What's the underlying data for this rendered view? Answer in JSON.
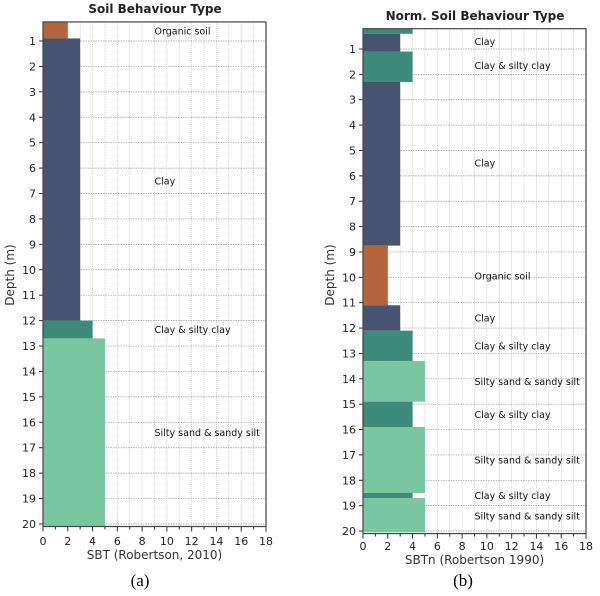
{
  "chart_data": [
    {
      "type": "bar",
      "orientation": "horizontal-depth-profile",
      "title": "Soil Behaviour Type",
      "xlabel": "SBT (Robertson, 2010)",
      "ylabel": "Depth (m)",
      "panel_label": "(a)",
      "xlim": [
        0,
        18
      ],
      "ylim": [
        0.25,
        20.1
      ],
      "x_ticks": [
        "0",
        "2",
        "4",
        "6",
        "8",
        "10",
        "12",
        "14",
        "16",
        "18"
      ],
      "y_ticks": [
        "1",
        "2",
        "3",
        "4",
        "5",
        "6",
        "7",
        "8",
        "9",
        "10",
        "11",
        "12",
        "13",
        "14",
        "15",
        "16",
        "17",
        "18",
        "19",
        "20"
      ],
      "grid": true,
      "layers": [
        {
          "top": 0.25,
          "bottom": 0.9,
          "value": 2,
          "type": "organic"
        },
        {
          "top": 0.9,
          "bottom": 12.0,
          "value": 3,
          "type": "clay"
        },
        {
          "top": 12.0,
          "bottom": 12.7,
          "value": 4,
          "type": "clay-silty-clay"
        },
        {
          "top": 12.7,
          "bottom": 20.1,
          "value": 5,
          "type": "silty-sand"
        }
      ],
      "annotations": [
        {
          "text": "Organic soil",
          "depth": 0.6
        },
        {
          "text": "Clay",
          "depth": 6.5
        },
        {
          "text": "Clay & silty clay",
          "depth": 12.35
        },
        {
          "text": "Silty sand & sandy silt",
          "depth": 16.4
        }
      ]
    },
    {
      "type": "bar",
      "orientation": "horizontal-depth-profile",
      "title": "Norm. Soil Behaviour Type",
      "xlabel": "SBTn (Robertson 1990)",
      "ylabel": "Depth (m)",
      "panel_label": "(b)",
      "xlim": [
        0,
        18
      ],
      "ylim": [
        0.2,
        20.1
      ],
      "x_ticks": [
        "0",
        "2",
        "4",
        "6",
        "8",
        "10",
        "12",
        "14",
        "16",
        "18"
      ],
      "y_ticks": [
        "1",
        "2",
        "3",
        "4",
        "5",
        "6",
        "7",
        "8",
        "9",
        "10",
        "11",
        "12",
        "13",
        "14",
        "15",
        "16",
        "17",
        "18",
        "19",
        "20"
      ],
      "grid": true,
      "layers": [
        {
          "top": 0.2,
          "bottom": 0.4,
          "value": 4,
          "type": "clay-silty-clay"
        },
        {
          "top": 0.4,
          "bottom": 1.1,
          "value": 3,
          "type": "clay"
        },
        {
          "top": 1.1,
          "bottom": 2.3,
          "value": 4,
          "type": "clay-silty-clay"
        },
        {
          "top": 2.3,
          "bottom": 8.75,
          "value": 3,
          "type": "clay"
        },
        {
          "top": 8.75,
          "bottom": 11.1,
          "value": 2,
          "type": "organic"
        },
        {
          "top": 11.1,
          "bottom": 12.1,
          "value": 3,
          "type": "clay"
        },
        {
          "top": 12.1,
          "bottom": 13.3,
          "value": 4,
          "type": "clay-silty-clay"
        },
        {
          "top": 13.3,
          "bottom": 14.9,
          "value": 5,
          "type": "silty-sand"
        },
        {
          "top": 14.9,
          "bottom": 15.9,
          "value": 4,
          "type": "clay-silty-clay"
        },
        {
          "top": 15.9,
          "bottom": 18.5,
          "value": 5,
          "type": "silty-sand"
        },
        {
          "top": 18.5,
          "bottom": 18.7,
          "value": 4,
          "type": "clay-silty-clay"
        },
        {
          "top": 18.7,
          "bottom": 20.05,
          "value": 5,
          "type": "silty-sand"
        }
      ],
      "annotations": [
        {
          "text": "Clay",
          "depth": 0.7
        },
        {
          "text": "Clay & silty clay",
          "depth": 1.65
        },
        {
          "text": "Clay",
          "depth": 5.5
        },
        {
          "text": "Organic soil",
          "depth": 9.95
        },
        {
          "text": "Clay",
          "depth": 11.6
        },
        {
          "text": "Clay & silty clay",
          "depth": 12.7
        },
        {
          "text": "Silty sand & sandy silt",
          "depth": 14.1
        },
        {
          "text": "Clay & silty clay",
          "depth": 15.4
        },
        {
          "text": "Silty sand & sandy silt",
          "depth": 17.2
        },
        {
          "text": "Clay & silty clay",
          "depth": 18.6
        },
        {
          "text": "Silty sand & sandy silt",
          "depth": 19.4
        }
      ]
    }
  ],
  "colors": {
    "organic": "#b5653c",
    "clay": "#465472",
    "clay-silty-clay": "#3f8b7b",
    "silty-sand": "#7ac6a0",
    "grid": "#bbbbbb",
    "frame": "#444444"
  }
}
